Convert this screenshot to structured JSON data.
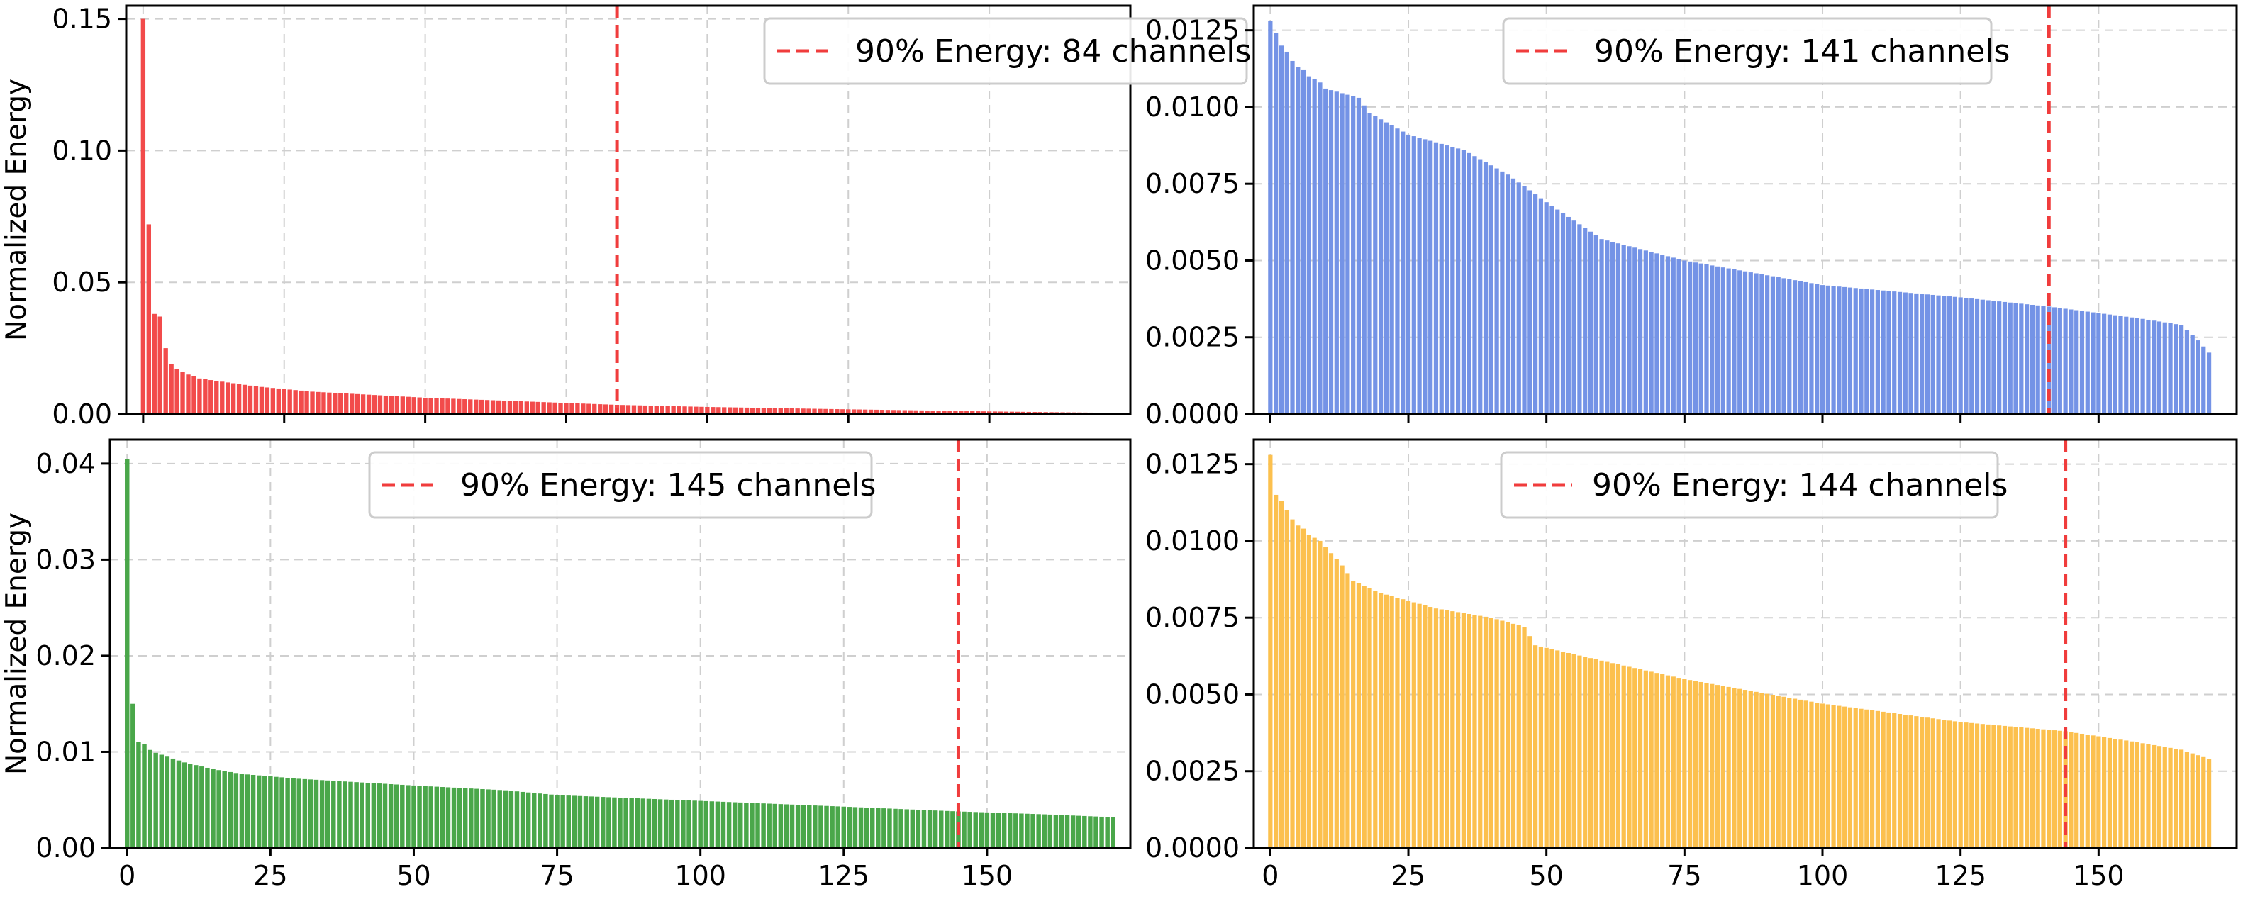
{
  "chart_data": [
    {
      "type": "bar",
      "panel": "top-left",
      "ylabel": "Normalized Energy",
      "xlim": [
        -3,
        175
      ],
      "ylim": [
        0,
        0.155
      ],
      "xticks": [
        0,
        25,
        50,
        75,
        100,
        125,
        150
      ],
      "xticks_labeled": false,
      "yticks": [
        0.0,
        0.05,
        0.1,
        0.15
      ],
      "ytick_labels": [
        "0.00",
        "0.05",
        "0.10",
        "0.15"
      ],
      "bar_color": "#f24b4b",
      "grid": true,
      "legend_position": "top-right",
      "num_channels": 175,
      "head_values": [
        0.15,
        0.072,
        0.038,
        0.037,
        0.025,
        0.019,
        0.017,
        0.016,
        0.015,
        0.0145
      ],
      "tail_anchors": [
        [
          10,
          0.0135
        ],
        [
          15,
          0.012
        ],
        [
          20,
          0.0105
        ],
        [
          30,
          0.0085
        ],
        [
          50,
          0.0062
        ],
        [
          84,
          0.0035
        ],
        [
          100,
          0.0027
        ],
        [
          125,
          0.0018
        ],
        [
          150,
          0.001
        ],
        [
          174,
          0.0004
        ]
      ],
      "threshold": {
        "x": 84,
        "label": "90% Energy: 84 channels",
        "color": "#f03c3c"
      }
    },
    {
      "type": "bar",
      "panel": "top-right",
      "ylabel": "",
      "xlim": [
        -3,
        175
      ],
      "ylim": [
        0,
        0.0133
      ],
      "xticks": [
        0,
        25,
        50,
        75,
        100,
        125,
        150
      ],
      "xticks_labeled": false,
      "yticks": [
        0.0,
        0.0025,
        0.005,
        0.0075,
        0.01,
        0.0125
      ],
      "ytick_labels": [
        "0.0000",
        "0.0025",
        "0.0050",
        "0.0075",
        "0.0100",
        "0.0125"
      ],
      "bar_color": "#7493e6",
      "grid": true,
      "legend_position": "top-center",
      "num_channels": 171,
      "head_values": [
        0.0128,
        0.0124,
        0.012,
        0.0118,
        0.0115,
        0.0113,
        0.0112,
        0.011,
        0.0109,
        0.0108
      ],
      "tail_anchors": [
        [
          10,
          0.0106
        ],
        [
          16,
          0.0103
        ],
        [
          18,
          0.0098
        ],
        [
          25,
          0.0091
        ],
        [
          35,
          0.0086
        ],
        [
          43,
          0.0078
        ],
        [
          50,
          0.0069
        ],
        [
          60,
          0.0057
        ],
        [
          75,
          0.005
        ],
        [
          100,
          0.0042
        ],
        [
          125,
          0.0038
        ],
        [
          141,
          0.0035
        ],
        [
          158,
          0.0031
        ],
        [
          165,
          0.0029
        ],
        [
          168,
          0.0024
        ],
        [
          170,
          0.002
        ]
      ],
      "threshold": {
        "x": 141,
        "label": "90% Energy: 141 channels",
        "color": "#f03c3c"
      }
    },
    {
      "type": "bar",
      "panel": "bottom-left",
      "ylabel": "Normalized Energy",
      "xlim": [
        -3,
        175
      ],
      "ylim": [
        0,
        0.0425
      ],
      "xticks": [
        0,
        25,
        50,
        75,
        100,
        125,
        150
      ],
      "xticks_labeled": true,
      "xtick_labels": [
        "0",
        "25",
        "50",
        "75",
        "100",
        "125",
        "150"
      ],
      "yticks": [
        0.0,
        0.01,
        0.02,
        0.03,
        0.04
      ],
      "ytick_labels": [
        "0.00",
        "0.01",
        "0.02",
        "0.03",
        "0.04"
      ],
      "bar_color": "#4aa74a",
      "grid": true,
      "legend_position": "top-center",
      "num_channels": 173,
      "head_values": [
        0.0405,
        0.015,
        0.011,
        0.0108,
        0.0102,
        0.0099,
        0.0097,
        0.0095,
        0.0093,
        0.0091
      ],
      "tail_anchors": [
        [
          10,
          0.0089
        ],
        [
          15,
          0.0082
        ],
        [
          20,
          0.0077
        ],
        [
          30,
          0.0072
        ],
        [
          50,
          0.0065
        ],
        [
          66,
          0.006
        ],
        [
          75,
          0.0055
        ],
        [
          100,
          0.0049
        ],
        [
          125,
          0.0043
        ],
        [
          145,
          0.0038
        ],
        [
          160,
          0.0035
        ],
        [
          172,
          0.0032
        ]
      ],
      "threshold": {
        "x": 145,
        "label": "90% Energy: 145 channels",
        "color": "#f03c3c"
      }
    },
    {
      "type": "bar",
      "panel": "bottom-right",
      "ylabel": "",
      "xlim": [
        -3,
        175
      ],
      "ylim": [
        0,
        0.0133
      ],
      "xticks": [
        0,
        25,
        50,
        75,
        100,
        125,
        150
      ],
      "xticks_labeled": true,
      "xtick_labels": [
        "0",
        "25",
        "50",
        "75",
        "100",
        "125",
        "150"
      ],
      "yticks": [
        0.0,
        0.0025,
        0.005,
        0.0075,
        0.01,
        0.0125
      ],
      "ytick_labels": [
        "0.0000",
        "0.0025",
        "0.0050",
        "0.0075",
        "0.0100",
        "0.0125"
      ],
      "bar_color": "#fcc04e",
      "grid": true,
      "legend_position": "top-center",
      "num_channels": 171,
      "head_values": [
        0.0128,
        0.0115,
        0.0113,
        0.011,
        0.0107,
        0.0105,
        0.0104,
        0.0102,
        0.0101,
        0.01
      ],
      "tail_anchors": [
        [
          10,
          0.0098
        ],
        [
          13,
          0.0092
        ],
        [
          15,
          0.0087
        ],
        [
          20,
          0.0083
        ],
        [
          30,
          0.0078
        ],
        [
          40,
          0.0075
        ],
        [
          46,
          0.0072
        ],
        [
          48,
          0.0066
        ],
        [
          60,
          0.0061
        ],
        [
          75,
          0.0055
        ],
        [
          100,
          0.0047
        ],
        [
          125,
          0.0041
        ],
        [
          144,
          0.0038
        ],
        [
          155,
          0.0035
        ],
        [
          165,
          0.0032
        ],
        [
          170,
          0.0029
        ]
      ],
      "threshold": {
        "x": 144,
        "label": "90% Energy: 144 channels",
        "color": "#f03c3c"
      }
    }
  ]
}
